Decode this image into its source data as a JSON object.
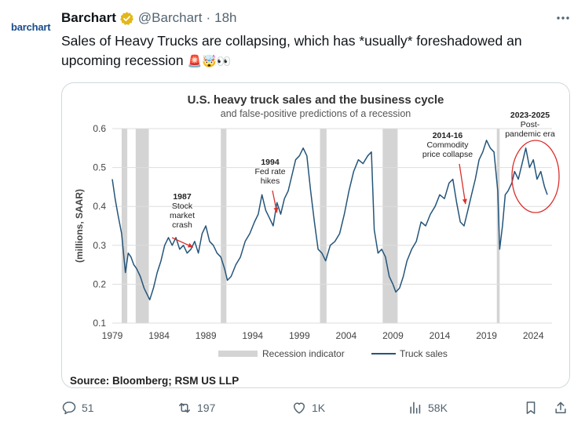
{
  "avatar": {
    "text": "barchart"
  },
  "tweet": {
    "author_name": "Barchart",
    "handle": "@Barchart",
    "separator": "·",
    "time": "18h",
    "text_line1": "Sales of Heavy Trucks are collapsing, which has *usually* foreshadowed an",
    "text_line2": "upcoming recession",
    "emojis": "🚨🤯👀"
  },
  "chart_data": {
    "type": "line",
    "title": "U.S. heavy truck sales and the business cycle",
    "subtitle": "and false-positive predictions of a recession",
    "ylabel": "(millions, SAAR)",
    "xlabel": "",
    "ylim": [
      0.1,
      0.6
    ],
    "xlim": [
      1979,
      2026
    ],
    "yticks": [
      "0.1",
      "0.2",
      "0.3",
      "0.4",
      "0.5",
      "0.6"
    ],
    "xticks": [
      "1979",
      "1984",
      "1989",
      "1994",
      "1999",
      "2004",
      "2009",
      "2014",
      "2019",
      "2024"
    ],
    "grid": "horizontal",
    "legend": {
      "position": "bottom",
      "recession_label": "Recession indicator",
      "series_label": "Truck sales"
    },
    "recessions": [
      [
        1980.0,
        1980.6
      ],
      [
        1981.5,
        1982.9
      ],
      [
        1990.6,
        1991.2
      ],
      [
        2001.2,
        2001.9
      ],
      [
        2007.9,
        2009.5
      ],
      [
        2020.1,
        2020.4
      ]
    ],
    "series": [
      {
        "name": "Truck sales",
        "x": [
          1979.0,
          1979.3,
          1979.6,
          1980.0,
          1980.4,
          1980.7,
          1981.0,
          1981.3,
          1981.6,
          1982.0,
          1982.4,
          1982.8,
          1983.0,
          1983.4,
          1983.8,
          1984.2,
          1984.6,
          1985.0,
          1985.4,
          1985.8,
          1986.2,
          1986.6,
          1987.0,
          1987.4,
          1987.8,
          1988.2,
          1988.6,
          1989.0,
          1989.4,
          1989.8,
          1990.2,
          1990.6,
          1991.0,
          1991.3,
          1991.7,
          1992.2,
          1992.7,
          1993.2,
          1993.7,
          1994.2,
          1994.6,
          1995.0,
          1995.4,
          1995.8,
          1996.2,
          1996.6,
          1997.0,
          1997.4,
          1997.8,
          1998.2,
          1998.6,
          1999.0,
          1999.4,
          1999.8,
          2000.2,
          2000.6,
          2001.0,
          2001.4,
          2001.8,
          2002.3,
          2002.8,
          2003.3,
          2003.8,
          2004.3,
          2004.8,
          2005.3,
          2005.8,
          2006.3,
          2006.7,
          2007.0,
          2007.4,
          2007.8,
          2008.2,
          2008.6,
          2009.0,
          2009.3,
          2009.7,
          2010.1,
          2010.5,
          2011.0,
          2011.5,
          2012.0,
          2012.5,
          2013.0,
          2013.5,
          2014.0,
          2014.5,
          2015.0,
          2015.4,
          2015.8,
          2016.2,
          2016.6,
          2017.0,
          2017.4,
          2017.8,
          2018.2,
          2018.6,
          2019.0,
          2019.4,
          2019.8,
          2020.2,
          2020.4,
          2020.7,
          2021.0,
          2021.3,
          2021.7,
          2022.0,
          2022.4,
          2022.8,
          2023.2,
          2023.6,
          2024.0,
          2024.4,
          2024.8,
          2025.2,
          2025.5
        ],
        "values": [
          0.47,
          0.42,
          0.38,
          0.33,
          0.23,
          0.28,
          0.27,
          0.25,
          0.24,
          0.22,
          0.19,
          0.17,
          0.16,
          0.19,
          0.23,
          0.26,
          0.3,
          0.32,
          0.3,
          0.32,
          0.29,
          0.3,
          0.28,
          0.29,
          0.31,
          0.28,
          0.33,
          0.35,
          0.31,
          0.3,
          0.28,
          0.27,
          0.24,
          0.21,
          0.22,
          0.25,
          0.27,
          0.31,
          0.33,
          0.36,
          0.38,
          0.43,
          0.39,
          0.37,
          0.35,
          0.41,
          0.38,
          0.42,
          0.44,
          0.48,
          0.52,
          0.53,
          0.55,
          0.53,
          0.44,
          0.36,
          0.29,
          0.28,
          0.26,
          0.3,
          0.31,
          0.33,
          0.38,
          0.44,
          0.49,
          0.52,
          0.51,
          0.53,
          0.54,
          0.34,
          0.28,
          0.29,
          0.27,
          0.22,
          0.2,
          0.18,
          0.19,
          0.22,
          0.26,
          0.29,
          0.31,
          0.36,
          0.35,
          0.38,
          0.4,
          0.43,
          0.42,
          0.46,
          0.47,
          0.41,
          0.36,
          0.35,
          0.39,
          0.43,
          0.47,
          0.52,
          0.54,
          0.57,
          0.55,
          0.54,
          0.44,
          0.29,
          0.35,
          0.43,
          0.44,
          0.46,
          0.49,
          0.47,
          0.51,
          0.55,
          0.5,
          0.52,
          0.47,
          0.49,
          0.45,
          0.43
        ]
      }
    ],
    "annotations": [
      {
        "label_year": "1987",
        "label_lines": [
          "Stock",
          "market",
          "crash"
        ],
        "target_x": 1987.3,
        "target_y": 0.295
      },
      {
        "label_year": "1994",
        "label_lines": [
          "Fed rate",
          "hikes"
        ],
        "target_x": 1996.6,
        "target_y": 0.38
      },
      {
        "label_year": "2014-16",
        "label_lines": [
          "Commodity",
          "price collapse"
        ],
        "target_x": 2016.5,
        "target_y": 0.41
      },
      {
        "label_year": "2023-2025",
        "label_lines": [
          "Post-",
          "pandemic era"
        ]
      }
    ],
    "source": "Source: Bloomberg; RSM US LLP",
    "colors": {
      "line": "#24557a",
      "recession": "#d4d4d4",
      "arrow": "#d9302c",
      "circle": "#d9302c",
      "grid": "#dddddd"
    }
  },
  "actions": {
    "replies": "51",
    "reposts": "197",
    "likes": "1K",
    "views": "58K"
  },
  "colors": {
    "muted": "#536471",
    "verified": "#e2b719"
  }
}
